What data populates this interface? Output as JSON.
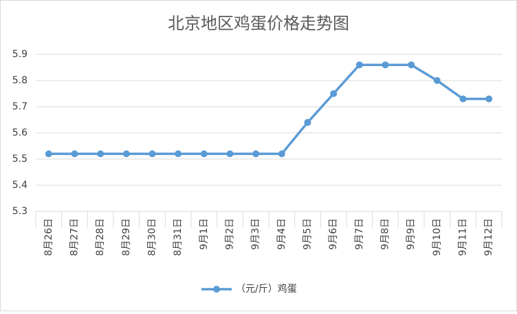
{
  "chart_data": {
    "type": "line",
    "title": "北京地区鸡蛋价格走势图",
    "categories": [
      "8月26日",
      "8月27日",
      "8月28日",
      "8月29日",
      "8月30日",
      "8月31日",
      "9月1日",
      "9月2日",
      "9月3日",
      "9月4日",
      "9月5日",
      "9月6日",
      "9月7日",
      "9月8日",
      "9月9日",
      "9月10日",
      "9月11日",
      "9月12日"
    ],
    "series": [
      {
        "name": "（元/斤）鸡蛋",
        "color": "#5b9bd5",
        "values": [
          5.52,
          5.52,
          5.52,
          5.52,
          5.52,
          5.52,
          5.52,
          5.52,
          5.52,
          5.52,
          5.64,
          5.75,
          5.86,
          5.86,
          5.86,
          5.8,
          5.73,
          5.73
        ]
      }
    ],
    "ylim": [
      5.3,
      5.9
    ],
    "yticks": [
      5.3,
      5.4,
      5.5,
      5.6,
      5.7,
      5.8,
      5.9
    ],
    "grid": true,
    "legend": "bottom"
  }
}
